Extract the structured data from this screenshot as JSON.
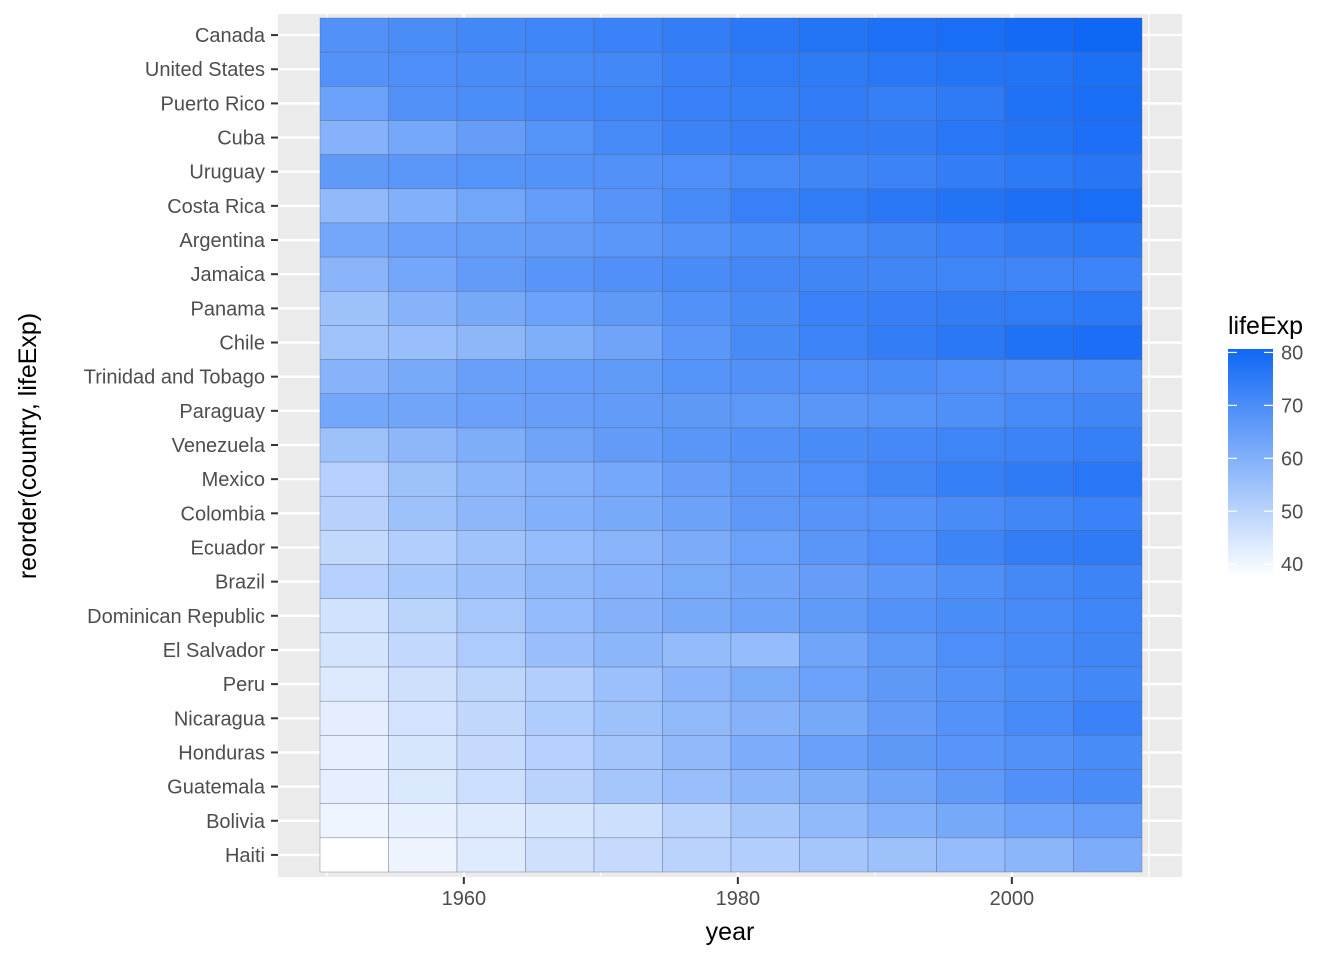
{
  "chart_data": {
    "type": "heatmap",
    "xlabel": "year",
    "ylabel": "reorder(country, lifeExp)",
    "x_ticks": [
      1960,
      1980,
      2000
    ],
    "xlim": [
      1949.5,
      2009.5
    ],
    "years": [
      1952,
      1957,
      1962,
      1967,
      1972,
      1977,
      1982,
      1987,
      1992,
      1997,
      2002,
      2007
    ],
    "countries": [
      "Canada",
      "United States",
      "Puerto Rico",
      "Cuba",
      "Uruguay",
      "Costa Rica",
      "Argentina",
      "Jamaica",
      "Panama",
      "Chile",
      "Trinidad and Tobago",
      "Paraguay",
      "Venezuela",
      "Mexico",
      "Colombia",
      "Ecuador",
      "Brazil",
      "Dominican Republic",
      "El Salvador",
      "Peru",
      "Nicaragua",
      "Honduras",
      "Guatemala",
      "Bolivia",
      "Haiti"
    ],
    "values": [
      [
        68.75,
        69.96,
        71.3,
        72.13,
        72.88,
        74.21,
        75.76,
        76.86,
        77.95,
        78.61,
        79.77,
        80.65
      ],
      [
        68.44,
        69.49,
        70.21,
        70.76,
        71.34,
        73.38,
        74.65,
        75.02,
        76.09,
        76.81,
        77.31,
        78.24
      ],
      [
        64.28,
        68.54,
        69.62,
        71.1,
        72.16,
        73.44,
        73.75,
        74.63,
        73.91,
        74.92,
        77.78,
        78.75
      ],
      [
        59.42,
        62.33,
        65.25,
        68.29,
        70.72,
        72.65,
        73.72,
        74.17,
        74.41,
        76.15,
        77.16,
        78.27
      ],
      [
        66.07,
        67.04,
        68.25,
        68.47,
        68.67,
        69.48,
        70.81,
        71.92,
        72.75,
        74.22,
        75.31,
        76.38
      ],
      [
        57.21,
        60.03,
        62.84,
        65.42,
        67.85,
        70.75,
        73.45,
        74.75,
        75.71,
        77.26,
        78.12,
        78.78
      ],
      [
        62.49,
        64.4,
        65.14,
        65.63,
        67.07,
        68.48,
        69.94,
        70.77,
        71.87,
        73.28,
        74.34,
        75.32
      ],
      [
        58.53,
        62.61,
        65.61,
        67.51,
        69.0,
        70.11,
        71.21,
        71.77,
        71.77,
        72.26,
        72.05,
        72.57
      ],
      [
        55.19,
        59.2,
        61.82,
        64.07,
        66.22,
        68.68,
        70.47,
        72.89,
        73.73,
        74.29,
        74.71,
        75.54
      ],
      [
        54.75,
        56.07,
        57.92,
        60.52,
        63.44,
        67.05,
        70.57,
        72.49,
        74.13,
        75.82,
        77.86,
        78.55
      ],
      [
        59.1,
        61.8,
        64.9,
        65.4,
        65.9,
        68.3,
        68.83,
        69.58,
        69.86,
        69.47,
        68.98,
        69.82
      ],
      [
        62.65,
        63.2,
        64.36,
        64.95,
        65.82,
        66.35,
        66.87,
        67.38,
        68.23,
        69.4,
        70.76,
        71.75
      ],
      [
        55.09,
        57.91,
        60.77,
        63.48,
        65.71,
        67.46,
        68.56,
        70.19,
        71.15,
        72.15,
        72.77,
        73.75
      ],
      [
        50.79,
        55.19,
        58.3,
        60.11,
        62.36,
        65.03,
        67.41,
        69.5,
        71.45,
        73.67,
        74.9,
        76.2
      ],
      [
        50.64,
        55.12,
        57.86,
        59.96,
        61.62,
        63.84,
        66.65,
        67.77,
        68.42,
        70.31,
        71.68,
        72.89
      ],
      [
        48.36,
        51.36,
        54.64,
        56.68,
        58.8,
        61.31,
        64.34,
        67.23,
        69.61,
        72.31,
        74.17,
        74.99
      ],
      [
        50.92,
        53.29,
        55.67,
        57.63,
        59.5,
        61.49,
        63.34,
        65.21,
        67.06,
        69.39,
        71.01,
        72.39
      ],
      [
        45.93,
        49.83,
        53.46,
        56.75,
        59.63,
        61.79,
        63.73,
        66.05,
        68.46,
        69.96,
        70.85,
        72.24
      ],
      [
        45.26,
        48.57,
        52.31,
        55.86,
        58.21,
        56.7,
        56.6,
        63.15,
        66.8,
        69.54,
        70.73,
        71.88
      ],
      [
        43.9,
        46.26,
        49.1,
        51.45,
        55.45,
        58.45,
        61.41,
        64.13,
        66.46,
        68.39,
        69.91,
        71.42
      ],
      [
        42.31,
        45.43,
        48.63,
        51.88,
        55.15,
        57.47,
        59.3,
        62.01,
        65.84,
        68.43,
        70.84,
        72.9
      ],
      [
        41.91,
        44.67,
        48.04,
        50.92,
        53.88,
        57.4,
        60.91,
        64.49,
        66.4,
        67.66,
        68.57,
        70.2
      ],
      [
        42.02,
        44.14,
        46.95,
        50.02,
        53.74,
        56.03,
        58.14,
        60.78,
        63.37,
        66.32,
        68.98,
        70.26
      ],
      [
        40.41,
        41.89,
        43.43,
        45.03,
        46.71,
        50.02,
        53.86,
        57.25,
        59.96,
        62.05,
        63.88,
        65.55
      ],
      [
        37.58,
        40.7,
        43.59,
        46.24,
        48.04,
        49.92,
        51.46,
        53.64,
        55.09,
        56.67,
        58.14,
        60.92
      ]
    ],
    "legend": {
      "title": "lifeExp",
      "placement": "right",
      "ticks": [
        80,
        70,
        60,
        50,
        40
      ],
      "range": [
        37.58,
        80.65
      ],
      "low_color": "#ffffff",
      "high_color": "#0f67f5"
    }
  }
}
